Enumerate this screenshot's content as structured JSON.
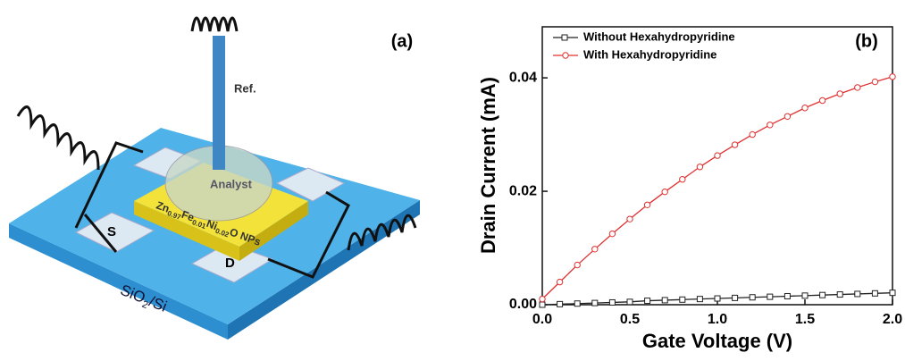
{
  "diagram": {
    "panel_label": "(a)",
    "electrode_label": "Ref.",
    "drop_label": "Analyst",
    "source_label": "S",
    "drain_label": "D",
    "material_label": [
      "Zn",
      "0.97",
      "Fe",
      "0.01",
      "Ni",
      "0.02",
      "O NPs"
    ],
    "substrate_label": [
      "SiO",
      "2",
      "/Si"
    ]
  },
  "chart_data": {
    "type": "line",
    "panel_label": "(b)",
    "x_label": "Gate Voltage (V)",
    "y_label": "Drain Current (mA)",
    "x": [
      0,
      0.1,
      0.2,
      0.3,
      0.4,
      0.5,
      0.6,
      0.7,
      0.8,
      0.9,
      1.0,
      1.1,
      1.2,
      1.3,
      1.4,
      1.5,
      1.6,
      1.7,
      1.8,
      1.9,
      2.0
    ],
    "series": [
      {
        "name": "Without Hexahydropyridine",
        "color": "#222222",
        "marker": "square",
        "values": [
          0,
          0.0001,
          0.0002,
          0.0003,
          0.0004,
          0.0005,
          0.0007,
          0.0008,
          0.0009,
          0.001,
          0.0011,
          0.0012,
          0.0013,
          0.0014,
          0.0015,
          0.0016,
          0.0017,
          0.0018,
          0.0019,
          0.002,
          0.0021
        ]
      },
      {
        "name": "With Hexahydropyridine",
        "color": "#e03030",
        "marker": "circle",
        "values": [
          0.001,
          0.004,
          0.007,
          0.0098,
          0.0125,
          0.0151,
          0.0176,
          0.0199,
          0.0221,
          0.0243,
          0.0263,
          0.0282,
          0.03,
          0.0317,
          0.0332,
          0.0347,
          0.036,
          0.0372,
          0.0383,
          0.0393,
          0.0402
        ]
      }
    ],
    "xlim": [
      0,
      2
    ],
    "ylim": [
      0,
      0.049
    ],
    "xticks": [
      {
        "value": 0,
        "label": "0.0"
      },
      0.5,
      {
        "value": 1,
        "label": "1.0"
      },
      1.5,
      {
        "value": 2,
        "label": "2.0"
      }
    ],
    "yticks": [
      {
        "value": 0,
        "label": "0.00"
      },
      {
        "value": 0.02,
        "label": "0.02"
      },
      {
        "value": 0.04,
        "label": "0.04"
      }
    ],
    "legend": "upper left"
  }
}
